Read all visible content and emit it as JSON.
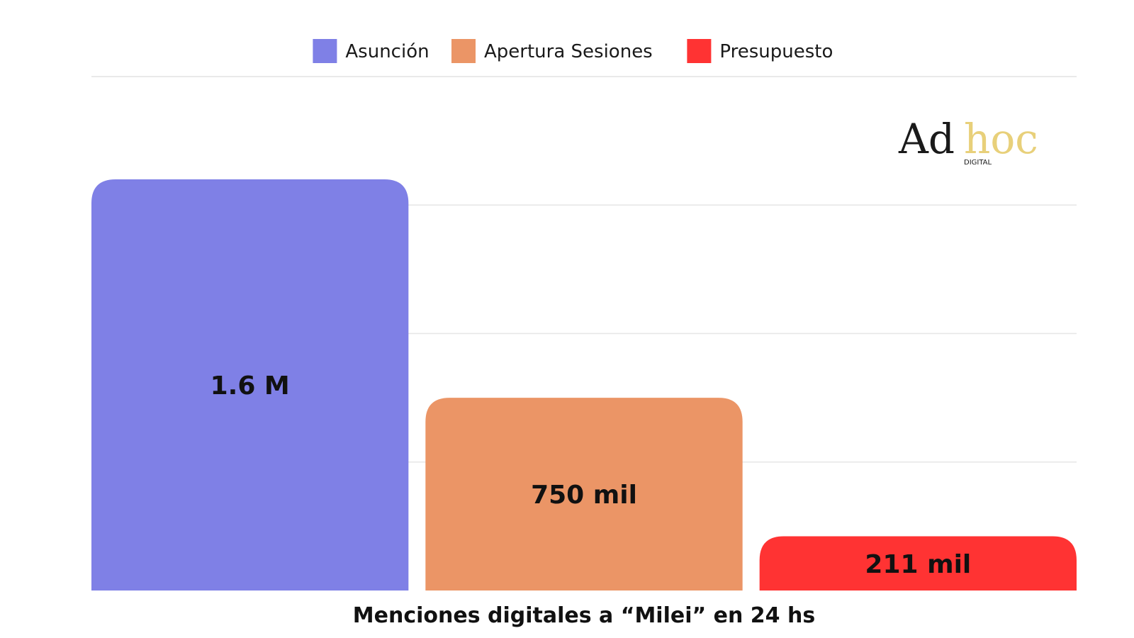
{
  "chart_data": {
    "type": "bar",
    "categories": [
      "Asunción",
      "Apertura Sesiones",
      "Presupuesto"
    ],
    "values": [
      1600000,
      750000,
      211000
    ],
    "value_labels": [
      "1.6 M",
      "750 mil",
      "211 mil"
    ],
    "colors": [
      "#7f80e6",
      "#eb9566",
      "#ff3333"
    ],
    "xlabel": "Menciones digitales a “Milei” en 24 hs",
    "ylim": [
      0,
      2000000
    ],
    "grid": true,
    "legend": "top-center"
  },
  "logo": {
    "line1": "Ad",
    "line2": "hoc",
    "sub": "DIGITAL",
    "accent_color": "#e8d07a"
  }
}
